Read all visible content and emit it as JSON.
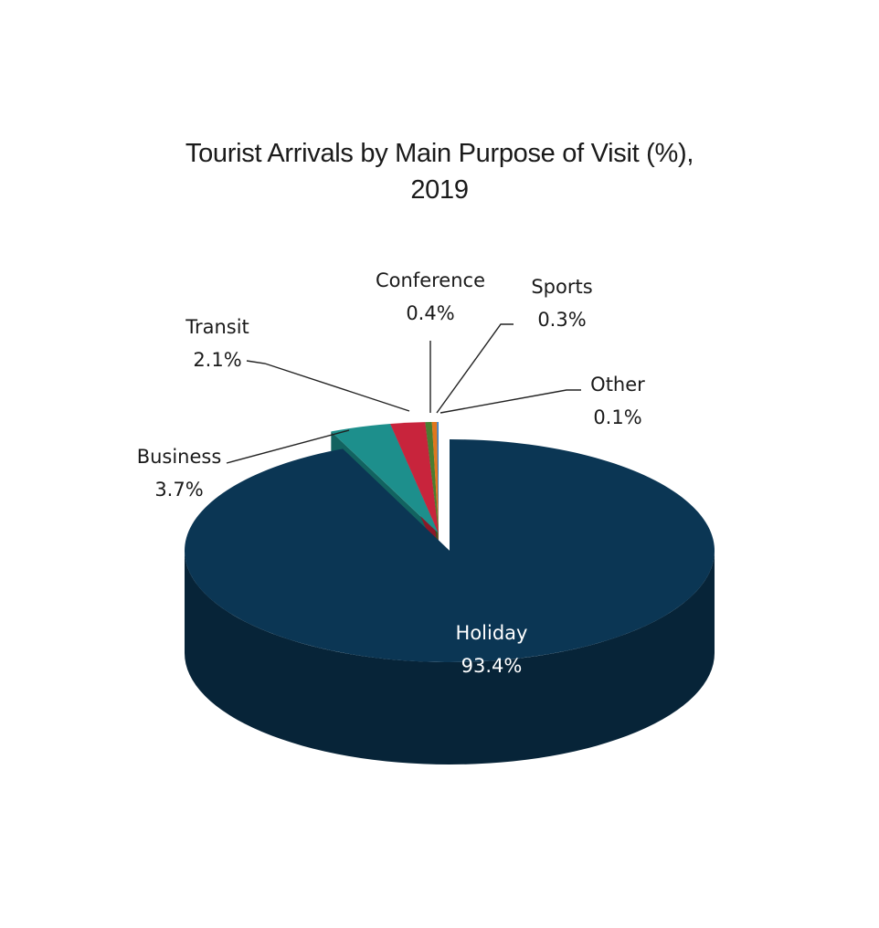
{
  "chart_data": {
    "type": "pie",
    "title_lines": [
      "Tourist Arrivals by Main Purpose of Visit (%),",
      "2019"
    ],
    "unit": "%",
    "slices": [
      {
        "label": "Holiday",
        "value": 93.4,
        "display": "93.4%",
        "color": "#0b3654",
        "side_color": "#072438"
      },
      {
        "label": "Business",
        "value": 3.7,
        "display": "3.7%",
        "color": "#1d8f8c",
        "side_color": "#126360"
      },
      {
        "label": "Transit",
        "value": 2.1,
        "display": "2.1%",
        "color": "#c8243c",
        "side_color": "#8c1828"
      },
      {
        "label": "Conference",
        "value": 0.4,
        "display": "0.4%",
        "color": "#4a7d31",
        "side_color": "#2f5220"
      },
      {
        "label": "Sports",
        "value": 0.3,
        "display": "0.3%",
        "color": "#e0771d",
        "side_color": "#9c5214"
      },
      {
        "label": "Other",
        "value": 0.1,
        "display": "0.1%",
        "color": "#3e7fc1",
        "side_color": "#2a5a8a"
      }
    ],
    "label_placement": "outside with leader lines; largest slice labeled inside",
    "legend": "none"
  }
}
